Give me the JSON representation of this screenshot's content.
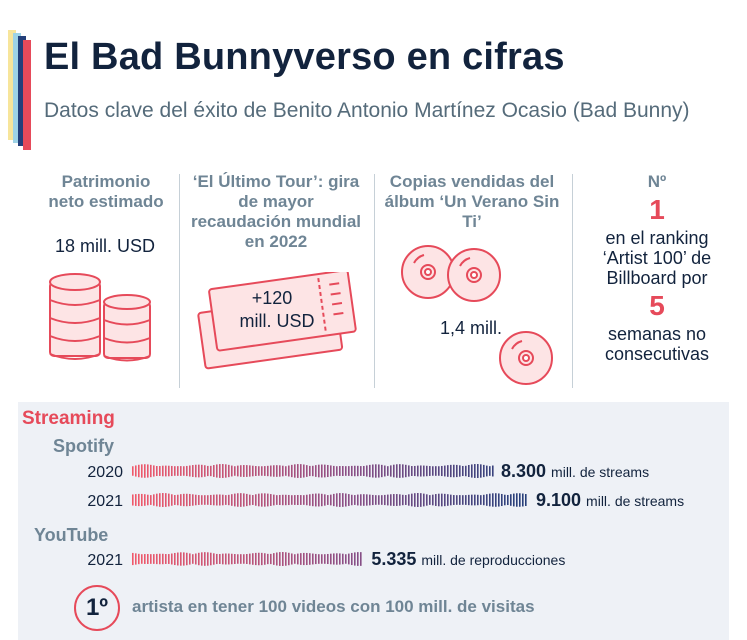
{
  "header": {
    "title": "El Bad Bunnyverso en cifras",
    "subtitle": "Datos clave del éxito de Benito Antonio Martínez Ocasio (Bad Bunny)"
  },
  "stats": {
    "networth": {
      "label": "Patrimonio neto estimado",
      "value": "18 mill. USD",
      "icon": "coin-stack-icon"
    },
    "tour": {
      "label": "‘El Último Tour’: gira de mayor recaudación mundial en 2022",
      "value_line1": "+120",
      "value_line2": "mill. USD",
      "icon": "ticket-icon"
    },
    "album": {
      "label": "Copias vendidas del álbum ‘Un Verano Sin Ti’",
      "value": "1,4 mill.",
      "icon": "disc-icon"
    },
    "billboard": {
      "prefix": "Nº",
      "rank": "1",
      "text1": "en el ranking ‘Artist 100’ de Billboard por",
      "weeks": "5",
      "text2": "semanas no consecutivas"
    }
  },
  "streaming": {
    "title": "Streaming",
    "spotify_label": "Spotify",
    "youtube_label": "YouTube",
    "fact_badge": "1º",
    "fact_text": "artista en tener 100 videos con 100 mill. de visitas"
  },
  "colors": {
    "accent": "#e64a5a",
    "navy": "#12233d",
    "wave_start": "#f0596b",
    "wave_mid": "#8a4f86",
    "wave_end": "#233f7a",
    "deco": [
      "#f7e59b",
      "#9ed3e6",
      "#233f7a",
      "#e64a5a"
    ]
  },
  "chart_data": {
    "type": "bar",
    "series": [
      {
        "name": "Spotify",
        "categories": [
          "2020",
          "2021"
        ],
        "values": [
          8300,
          9100
        ],
        "labels": [
          "8.300",
          "9.100"
        ],
        "unit": "mill. de streams"
      },
      {
        "name": "YouTube",
        "categories": [
          "2021"
        ],
        "values": [
          5335
        ],
        "labels": [
          "5.335"
        ],
        "unit": "mill. de reproducciones"
      }
    ]
  }
}
